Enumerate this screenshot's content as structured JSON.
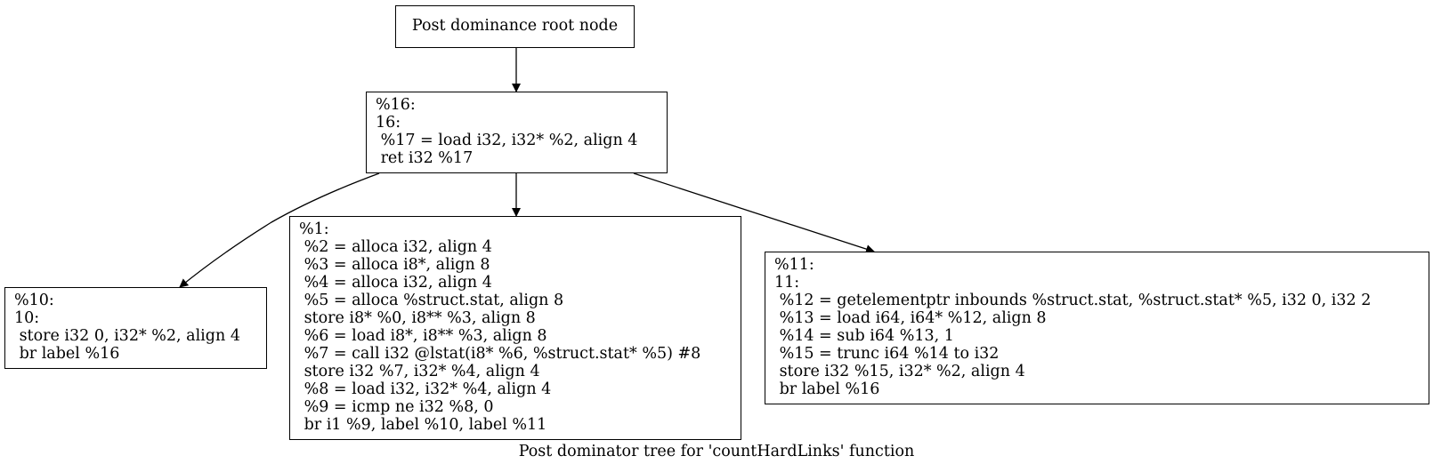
{
  "caption": "Post dominator tree for 'countHardLinks' function",
  "nodes": {
    "root": {
      "label": "Post dominance root node"
    },
    "n16": {
      "lines": [
        "%16:",
        "16:",
        " %17 = load i32, i32* %2, align 4",
        " ret i32 %17"
      ]
    },
    "n10": {
      "lines": [
        "%10:",
        "10:",
        " store i32 0, i32* %2, align 4",
        " br label %16"
      ]
    },
    "n1": {
      "lines": [
        "%1:",
        " %2 = alloca i32, align 4",
        " %3 = alloca i8*, align 8",
        " %4 = alloca i32, align 4",
        " %5 = alloca %struct.stat, align 8",
        " store i8* %0, i8** %3, align 8",
        " %6 = load i8*, i8** %3, align 8",
        " %7 = call i32 @lstat(i8* %6, %struct.stat* %5) #8",
        " store i32 %7, i32* %4, align 4",
        " %8 = load i32, i32* %4, align 4",
        " %9 = icmp ne i32 %8, 0",
        " br i1 %9, label %10, label %11"
      ]
    },
    "n11": {
      "lines": [
        "%11:",
        "11:",
        " %12 = getelementptr inbounds %struct.stat, %struct.stat* %5, i32 0, i32 2",
        " %13 = load i64, i64* %12, align 8",
        " %14 = sub i64 %13, 1",
        " %15 = trunc i64 %14 to i32",
        " store i32 %15, i32* %2, align 4",
        " br label %16"
      ]
    }
  },
  "edges": [
    {
      "from": "root",
      "to": "n16"
    },
    {
      "from": "n16",
      "to": "n10"
    },
    {
      "from": "n16",
      "to": "n1"
    },
    {
      "from": "n16",
      "to": "n11"
    }
  ]
}
